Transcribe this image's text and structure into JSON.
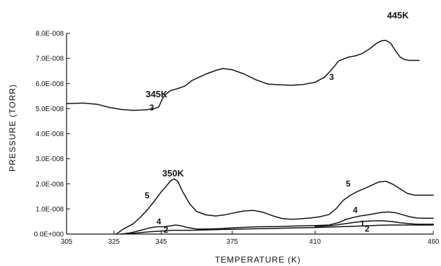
{
  "chart_data": {
    "type": "line",
    "title": "",
    "xlabel": "TEMPERATURE (K)",
    "ylabel": "PRESSURE (TORR)",
    "xlim": [
      305,
      460
    ],
    "ylim": [
      0,
      8e-08
    ],
    "grid": false,
    "x_ticks": [
      305,
      325,
      345,
      375,
      410,
      460
    ],
    "x_tick_labels": [
      "305",
      "325",
      "345",
      "375",
      "410",
      "460"
    ],
    "y_ticks": [
      0,
      1e-08,
      2e-08,
      3e-08,
      4e-08,
      5e-08,
      6e-08,
      7e-08,
      8e-08
    ],
    "y_tick_labels": [
      "0.0E+000",
      "1.0E-008",
      "2.0E-008",
      "3.0E-008",
      "4.0E-008",
      "5.0E-008",
      "6.0E-008",
      "7.0E-008",
      "8.0E-008"
    ],
    "peak_labels": [
      {
        "text": "445K",
        "x": 445,
        "y": 8.6e-08
      },
      {
        "text": "345K",
        "x": 343,
        "y": 5.45e-08
      },
      {
        "text": "350K",
        "x": 350,
        "y": 2.3e-08
      }
    ],
    "series": [
      {
        "label": "3",
        "x": [
          305,
          312,
          318,
          323,
          328,
          333,
          338,
          342,
          344,
          345.5,
          347,
          349,
          352,
          355,
          358,
          361,
          364,
          368,
          371,
          375,
          380,
          385,
          390,
          395,
          400,
          405,
          410,
          414,
          417,
          420,
          424,
          427,
          430,
          433,
          436,
          438,
          440,
          442,
          444,
          446,
          448,
          450,
          452,
          454
        ],
        "y": [
          5.2e-08,
          5.22e-08,
          5.17e-08,
          5.05e-08,
          4.97e-08,
          4.93e-08,
          4.95e-08,
          5e-08,
          5.07e-08,
          5.4e-08,
          5.58e-08,
          5.72e-08,
          5.8e-08,
          5.9e-08,
          6.12e-08,
          6.25e-08,
          6.38e-08,
          6.52e-08,
          6.6e-08,
          6.55e-08,
          6.38e-08,
          6.15e-08,
          5.98e-08,
          5.95e-08,
          5.93e-08,
          5.96e-08,
          6.05e-08,
          6.25e-08,
          6.55e-08,
          6.9e-08,
          7.05e-08,
          7.1e-08,
          7.2e-08,
          7.38e-08,
          7.6e-08,
          7.7e-08,
          7.72e-08,
          7.6e-08,
          7.3e-08,
          7.05e-08,
          6.95e-08,
          6.92e-08,
          6.92e-08,
          6.92e-08
        ],
        "labels_at": [
          {
            "x": 341,
            "y": 4.93e-08
          },
          {
            "x": 417,
            "y": 6.15e-08
          }
        ]
      },
      {
        "label": "5",
        "x": [
          326,
          329,
          333,
          336,
          339,
          342,
          345,
          347.5,
          349,
          350.5,
          352,
          354,
          357,
          360,
          364,
          368,
          372,
          376,
          380,
          384,
          388,
          392,
          396,
          400,
          404,
          408,
          412,
          416,
          419,
          422,
          425,
          428,
          431,
          434,
          437,
          440,
          443,
          446,
          449,
          452,
          455,
          458,
          460
        ],
        "y": [
          0,
          2e-09,
          4e-09,
          6.5e-09,
          9.5e-09,
          1.3e-08,
          1.68e-08,
          1.95e-08,
          2.13e-08,
          2.2e-08,
          2.1e-08,
          1.7e-08,
          1.2e-08,
          9e-09,
          7.6e-09,
          7.2e-09,
          7.7e-09,
          8.5e-09,
          9.2e-09,
          9.4e-09,
          8.7e-09,
          7.3e-09,
          6.2e-09,
          5.9e-09,
          6.1e-09,
          6.4e-09,
          6.9e-09,
          7.8e-09,
          1.02e-08,
          1.35e-08,
          1.55e-08,
          1.7e-08,
          1.82e-08,
          1.95e-08,
          2.08e-08,
          2.1e-08,
          1.98e-08,
          1.8e-08,
          1.62e-08,
          1.55e-08,
          1.55e-08,
          1.55e-08,
          1.55e-08
        ],
        "labels_at": [
          {
            "x": 339,
            "y": 1.42e-08
          },
          {
            "x": 424,
            "y": 1.9e-08
          }
        ]
      },
      {
        "label": "4",
        "x": [
          328,
          332,
          336,
          340,
          343,
          346,
          349,
          351,
          353,
          356,
          360,
          365,
          370,
          378,
          386,
          394,
          402,
          410,
          416,
          420,
          423,
          426,
          429,
          432,
          435,
          438,
          441,
          444,
          447,
          450,
          453,
          456,
          460
        ],
        "y": [
          0,
          5e-10,
          1.4e-09,
          2.4e-09,
          2.9e-09,
          2.9e-09,
          3.3e-09,
          3.6e-09,
          3.4e-09,
          2.6e-09,
          2e-09,
          2e-09,
          2.2e-09,
          2.6e-09,
          2.9e-09,
          3e-09,
          3.2e-09,
          3.4e-09,
          3.6e-09,
          4.6e-09,
          5.8e-09,
          6.6e-09,
          7.2e-09,
          7.6e-09,
          8.1e-09,
          8.6e-09,
          8.8e-09,
          8.5e-09,
          7.7e-09,
          6.9e-09,
          6.4e-09,
          6.3e-09,
          6.3e-09
        ],
        "labels_at": [
          {
            "x": 344,
            "y": 3.9e-09
          },
          {
            "x": 427,
            "y": 8.5e-09
          }
        ]
      },
      {
        "label": "1",
        "x": [
          410,
          414,
          418,
          421,
          424,
          427,
          430,
          433,
          436,
          438,
          440,
          443,
          446,
          449,
          452,
          455,
          458,
          460
        ],
        "y": [
          3e-09,
          3.2e-09,
          3.5e-09,
          3.9e-09,
          4.3e-09,
          4.7e-09,
          5e-09,
          5.2e-09,
          5.3e-09,
          5.3e-09,
          5.2e-09,
          4.9e-09,
          4.5e-09,
          4.2e-09,
          4e-09,
          3.9e-09,
          3.9e-09,
          3.9e-09
        ],
        "labels_at": [
          {
            "x": 430,
            "y": 3e-09
          }
        ]
      },
      {
        "label": "2",
        "x": [
          328,
          334,
          340,
          345,
          349,
          353,
          357,
          362,
          370,
          380,
          390,
          400,
          410,
          420,
          430,
          437,
          442,
          447,
          452,
          456,
          460
        ],
        "y": [
          0,
          4e-10,
          9e-10,
          1.2e-09,
          1.5e-09,
          1.5e-09,
          1.5e-09,
          1.6e-09,
          1.8e-09,
          2e-09,
          2.2e-09,
          2.4e-09,
          2.6e-09,
          2.9e-09,
          3.2e-09,
          3.5e-09,
          3.6e-09,
          3.6e-09,
          3.6e-09,
          3.6e-09,
          3.6e-09
        ],
        "labels_at": [
          {
            "x": 347,
            "y": 5e-10
          },
          {
            "x": 432,
            "y": 1e-09
          }
        ]
      }
    ]
  }
}
